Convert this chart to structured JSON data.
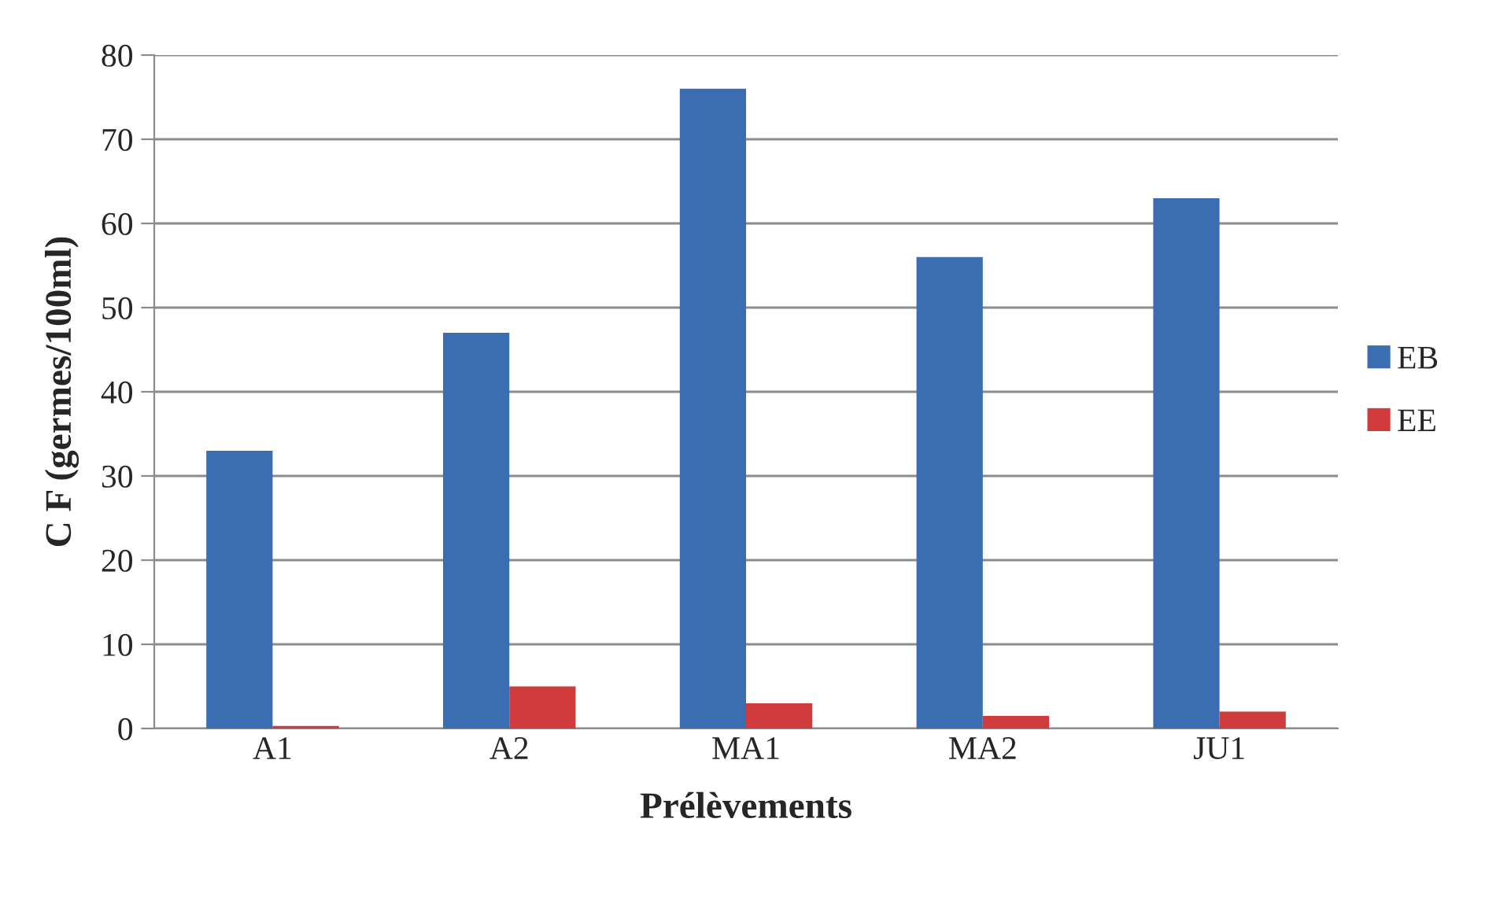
{
  "chart_data": {
    "type": "bar",
    "xlabel": "Prélèvements",
    "ylabel": "C F (germes/100ml)",
    "categories": [
      "A1",
      "A2",
      "MA1",
      "MA2",
      "JU1"
    ],
    "series": [
      {
        "name": "EB",
        "color": "#3b6db3",
        "values": [
          33,
          47,
          76,
          56,
          63
        ]
      },
      {
        "name": "EE",
        "color": "#d03c3c",
        "values": [
          0.3,
          5,
          3,
          1.5,
          2
        ]
      }
    ],
    "ylim": [
      0,
      80
    ],
    "yticks": [
      0,
      10,
      20,
      30,
      40,
      50,
      60,
      70,
      80
    ],
    "grid": "y",
    "legend": "right"
  }
}
